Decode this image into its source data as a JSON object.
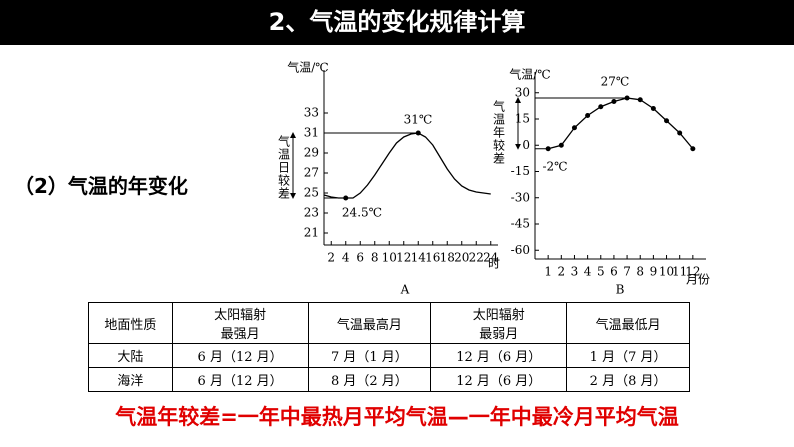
{
  "header": {
    "title": "2、气温的变化规律计算"
  },
  "subtitle": "（2）气温的年变化",
  "chart_data": [
    {
      "type": "line",
      "caption": "A",
      "y_label": "气温/℃",
      "x_label": "时",
      "range_label": "气温日较差",
      "annotations": [
        "31℃",
        "24.5℃"
      ],
      "x": [
        1,
        2,
        3,
        4,
        5,
        6,
        7,
        8,
        9,
        10,
        11,
        12,
        13,
        14,
        15,
        16,
        17,
        18,
        19,
        20,
        21,
        22,
        23,
        24
      ],
      "series": [
        {
          "color": "#000000",
          "values": [
            24.8,
            24.6,
            24.5,
            24.5,
            24.5,
            25,
            25.8,
            26.8,
            27.9,
            29,
            30,
            30.6,
            30.9,
            31,
            30.6,
            29.8,
            28.6,
            27.4,
            26.4,
            25.7,
            25.3,
            25.1,
            25,
            24.9
          ]
        }
      ],
      "max_index": 13,
      "min_index": 3,
      "markers": false,
      "xlim": [
        1,
        25
      ],
      "xticks": [
        2,
        4,
        6,
        8,
        10,
        12,
        14,
        16,
        18,
        20,
        22,
        24
      ],
      "ylim": [
        20,
        36
      ],
      "yticks": [
        21,
        23,
        25,
        27,
        29,
        31,
        33
      ]
    },
    {
      "type": "line",
      "caption": "B",
      "y_label": "气温/℃",
      "x_label": "月份",
      "range_label": "气温年较差",
      "annotations": [
        "27℃",
        "-2℃"
      ],
      "x": [
        1,
        2,
        3,
        4,
        5,
        6,
        7,
        8,
        9,
        10,
        11,
        12
      ],
      "series": [
        {
          "color": "#000000",
          "values": [
            -2,
            0,
            10,
            17,
            22,
            25,
            27,
            26,
            21,
            14,
            7,
            -2
          ]
        }
      ],
      "max_index": 6,
      "min_index": 0,
      "markers": true,
      "xlim": [
        0,
        13
      ],
      "xticks": [
        1,
        2,
        3,
        4,
        5,
        6,
        7,
        8,
        9,
        10,
        11,
        12
      ],
      "ylim": [
        -65,
        35
      ],
      "yticks": [
        30,
        15,
        0,
        -15,
        -30,
        -45,
        -60
      ]
    }
  ],
  "table": {
    "rows": [
      [
        "地面性质",
        "太阳辐射\n最强月",
        "气温最高月",
        "太阳辐射\n最弱月",
        "气温最低月"
      ],
      [
        "大陆",
        "6 月（12 月）",
        "7 月（1 月）",
        "12 月（6 月）",
        "1 月（7 月）"
      ],
      [
        "海洋",
        "6 月（12 月）",
        "8 月（2 月）",
        "12 月（6 月）",
        "2 月（8 月）"
      ]
    ]
  },
  "footer": "气温年较差=一年中最热月平均气温—一年中最冷月平均气温"
}
